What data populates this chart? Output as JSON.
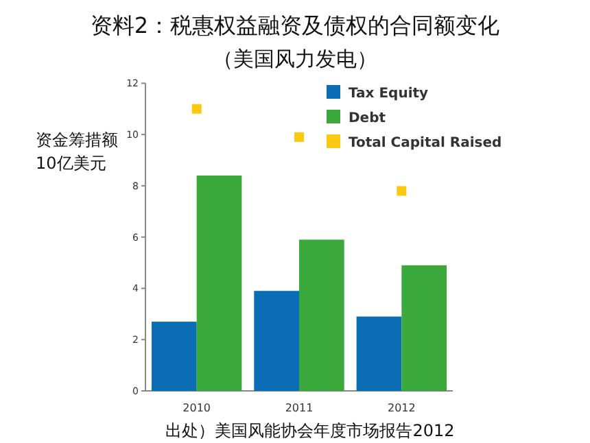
{
  "chart_data": {
    "type": "bar",
    "title": "资料2：税惠权益融资及债权的合同额变化",
    "subtitle": "（美国风力发电）",
    "ylabel": "资金筹措额\n10亿美元",
    "categories": [
      "2010",
      "2011",
      "2012"
    ],
    "series": [
      {
        "name": "Tax Equity",
        "color": "#0b6db4",
        "values": [
          2.7,
          3.9,
          2.9
        ]
      },
      {
        "name": "Debt",
        "color": "#3aa83a",
        "values": [
          8.4,
          5.9,
          4.9
        ]
      },
      {
        "name": "Total Capital Raised",
        "type": "scatter",
        "marker": "square",
        "color": "#fcc811",
        "values": [
          11.0,
          9.9,
          7.8
        ]
      }
    ],
    "ylim": [
      0,
      12
    ],
    "yticks": [
      0,
      2,
      4,
      6,
      8,
      10,
      12
    ],
    "legend": "top right",
    "grid": false,
    "annotations": [
      "出处）美国风能协会年度市场报告2012"
    ]
  }
}
